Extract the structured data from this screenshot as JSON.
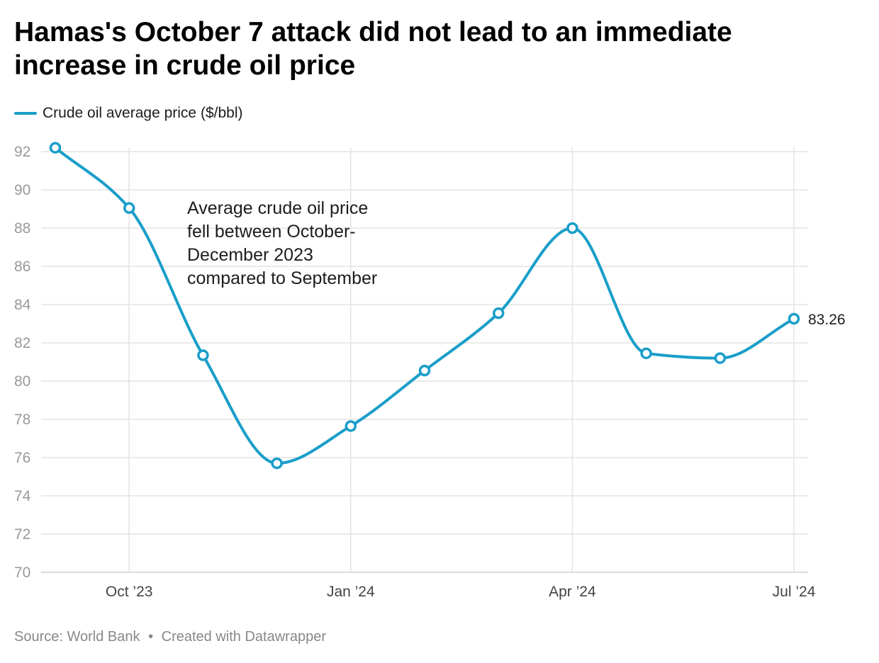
{
  "title": "Hamas's October 7 attack did not lead to an immediate increase in crude oil price",
  "legend": {
    "label": "Crude oil average price ($/bbl)"
  },
  "colors": {
    "line": "#1a9ec9",
    "grid": "#e3e3e3",
    "tick_text": "#999999",
    "axis_label": "#444444"
  },
  "chart_data": {
    "type": "line",
    "title": "Hamas's October 7 attack did not lead to an immediate increase in crude oil price",
    "xlabel": "",
    "ylabel": "",
    "ylim": [
      70,
      92
    ],
    "yticks": [
      70,
      72,
      74,
      76,
      78,
      80,
      82,
      84,
      86,
      88,
      90,
      92
    ],
    "x_range": [
      "2023-09",
      "2024-07"
    ],
    "x_ticks": [
      {
        "x": "2023-10",
        "label": "Oct ’23"
      },
      {
        "x": "2024-01",
        "label": "Jan ’24"
      },
      {
        "x": "2024-04",
        "label": "Apr ’24"
      },
      {
        "x": "2024-07",
        "label": "Jul ’24"
      }
    ],
    "grid": true,
    "legend_position": "top-left",
    "series": [
      {
        "name": "Crude oil average price ($/bbl)",
        "x": [
          "2023-09",
          "2023-10",
          "2023-11",
          "2023-12",
          "2024-01",
          "2024-02",
          "2024-03",
          "2024-04",
          "2024-05",
          "2024-06",
          "2024-07"
        ],
        "values": [
          92.2,
          89.05,
          81.35,
          75.7,
          77.65,
          80.55,
          83.55,
          88.0,
          81.45,
          81.2,
          83.26
        ]
      }
    ],
    "end_label": "83.26",
    "annotation": [
      "Average crude oil price",
      "fell between October-",
      "December 2023",
      "compared to September"
    ]
  },
  "footer": {
    "source": "Source: World Bank",
    "separator": "•",
    "credit": "Created with Datawrapper"
  }
}
